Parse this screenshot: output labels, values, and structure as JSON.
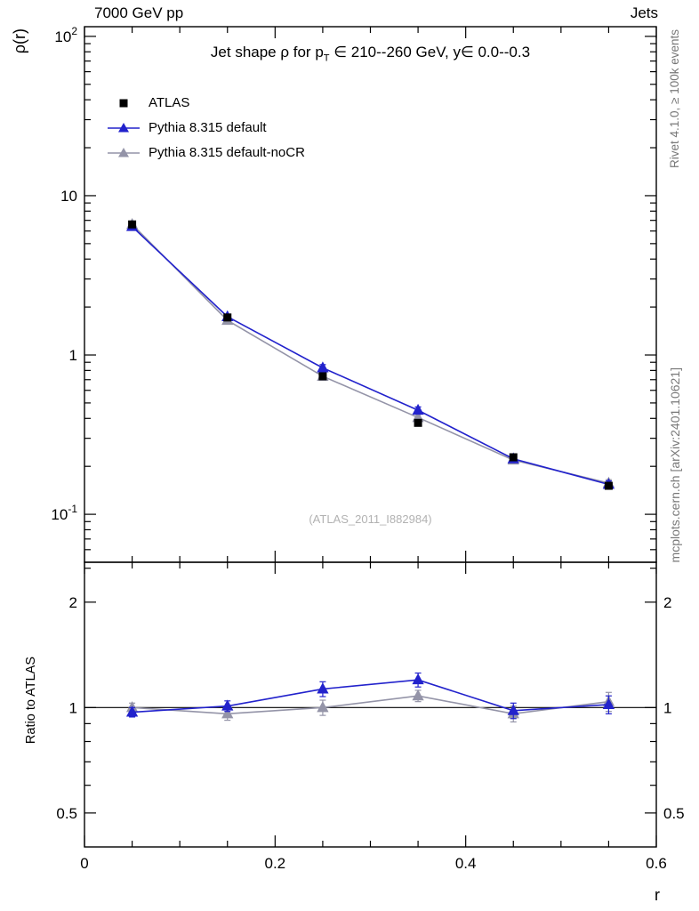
{
  "header": {
    "left": "7000 GeV pp",
    "right": "Jets"
  },
  "title": {
    "prefix": "Jet shape ρ for p",
    "sub": "T",
    "suffix": " ∈ 210--260 GeV, y∈ 0.0--0.3"
  },
  "legend": [
    {
      "label": "ATLAS",
      "marker": "square",
      "color": "#000000",
      "line": false
    },
    {
      "label": "Pythia 8.315 default",
      "marker": "triangle",
      "color": "#2222cc",
      "line": true
    },
    {
      "label": "Pythia 8.315 default-noCR",
      "marker": "triangle",
      "color": "#9494a8",
      "line": true
    }
  ],
  "watermark": "(ATLAS_2011_I882984)",
  "side_text_top": "Rivet 4.1.0, ≥ 100k events",
  "side_text_bottom": "mcplots.cern.ch [arXiv:2401.10621]",
  "axes": {
    "ylabel_top": "ρ(r)",
    "ylabel_bottom": "Ratio to ATLAS",
    "xlabel": "r",
    "x_ticks": [
      {
        "value": 0,
        "label": "0"
      },
      {
        "value": 0.2,
        "label": "0.2"
      },
      {
        "value": 0.4,
        "label": "0.4"
      },
      {
        "value": 0.6,
        "label": "0.6"
      }
    ],
    "x_minor_step": 0.05,
    "y_ticks_top": [
      {
        "value": 0.1,
        "base": "10",
        "exp": "-1"
      },
      {
        "value": 1,
        "base": "1",
        "exp": ""
      },
      {
        "value": 10,
        "base": "10",
        "exp": ""
      },
      {
        "value": 100,
        "base": "10",
        "exp": "2"
      }
    ],
    "ratio_ticks": [
      {
        "value": 0.5,
        "label": "0.5"
      },
      {
        "value": 1,
        "label": "1"
      },
      {
        "value": 2,
        "label": "2"
      }
    ],
    "ratio_minor_ticks": [
      0.6,
      0.7,
      0.8,
      0.9,
      2.5
    ]
  },
  "chart_data": {
    "type": "line",
    "title": "Jet shape ρ for p_T ∈ 210--260 GeV, y ∈ 0.0--0.3",
    "xlabel": "r",
    "ylabel": "ρ(r)",
    "ylabel_ratio": "Ratio to ATLAS",
    "xlim": [
      0,
      0.6
    ],
    "ylim_main": [
      0.05,
      115
    ],
    "yscale_main": "log",
    "ylim_ratio": [
      0.4,
      2.6
    ],
    "yscale_ratio": "log",
    "grid": false,
    "legend_position": "top-left",
    "x": [
      0.05,
      0.15,
      0.25,
      0.35,
      0.45,
      0.55
    ],
    "series": [
      {
        "name": "ATLAS",
        "color": "#000000",
        "marker": "square",
        "line": false,
        "values": [
          6.6,
          1.72,
          0.735,
          0.375,
          0.228,
          0.151
        ],
        "yerr": [
          0.15,
          0.05,
          0.02,
          0.012,
          0.008,
          0.006
        ]
      },
      {
        "name": "Pythia 8.315 default",
        "color": "#2222cc",
        "marker": "triangle",
        "line": true,
        "values": [
          6.4,
          1.74,
          0.83,
          0.45,
          0.223,
          0.154
        ],
        "yerr": [
          0.1,
          0.05,
          0.04,
          0.022,
          0.01,
          0.008
        ]
      },
      {
        "name": "Pythia 8.315 default-noCR",
        "color": "#9494a8",
        "marker": "triangle",
        "line": true,
        "values": [
          6.6,
          1.65,
          0.735,
          0.405,
          0.219,
          0.157
        ],
        "yerr": [
          0.1,
          0.05,
          0.03,
          0.018,
          0.01,
          0.008
        ]
      }
    ],
    "ratio": {
      "reference": "ATLAS",
      "series": [
        {
          "name": "Pythia 8.315 default",
          "color": "#2222cc",
          "marker": "triangle",
          "values": [
            0.97,
            1.01,
            1.13,
            1.2,
            0.98,
            1.02
          ],
          "yerr": [
            0.03,
            0.035,
            0.055,
            0.055,
            0.05,
            0.06
          ]
        },
        {
          "name": "Pythia 8.315 default-noCR",
          "color": "#9494a8",
          "marker": "triangle",
          "values": [
            1.0,
            0.96,
            1.0,
            1.08,
            0.96,
            1.04
          ],
          "yerr": [
            0.03,
            0.04,
            0.05,
            0.04,
            0.05,
            0.065
          ]
        }
      ]
    }
  }
}
